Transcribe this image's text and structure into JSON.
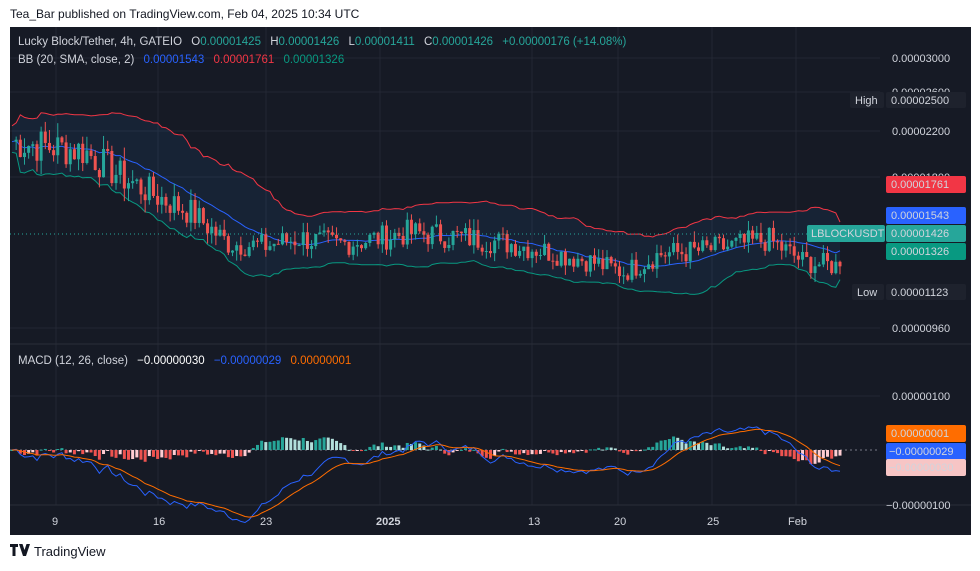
{
  "header": {
    "published": "Tea_Bar published on TradingView.com, Feb 04, 2025 10:34 UTC"
  },
  "footer": {
    "brand": "TradingView",
    "logo": "tv-logo-icon"
  },
  "colors": {
    "background": "#161a25",
    "up": "#26a69a",
    "down": "#ef5350",
    "bb_basis": "#2962ff",
    "bb_upper": "#f23645",
    "bb_lower": "#089981",
    "macd_line": "#2962ff",
    "signal_line": "#ff6d00"
  },
  "legend": {
    "symbol": "Lucky Block/Tether, 4h, GATEIO",
    "o_label": "O",
    "o": "0.00001425",
    "h_label": "H",
    "h": "0.00001426",
    "l_label": "L",
    "l": "0.00001411",
    "c_label": "C",
    "c": "0.00001426",
    "change": "+0.00000176 (+14.08%)",
    "bb_label": "BB (20, SMA, close, 2)",
    "bb_basis": "0.00001543",
    "bb_upper": "0.00001761",
    "bb_lower": "0.00001326",
    "macd_label": "MACD (12, 26, close)",
    "macd_hist": "−0.00000030",
    "macd_line": "−0.00000029",
    "macd_signal": "0.00000001"
  },
  "price_axis": {
    "ticks": [
      "0.00003000",
      "0.00002600",
      "0.00002200",
      "0.00001800",
      "0.00000960"
    ],
    "high_label": "High",
    "high": "0.00002500",
    "low_label": "Low",
    "low": "0.00001123",
    "bb_upper_tag": "0.00001761",
    "bb_basis_tag": "0.00001543",
    "symbol_tag": "LBLOCKUSDT",
    "last_tag": "0.00001426",
    "bb_lower_tag": "0.00001326"
  },
  "macd_axis": {
    "ticks": [
      "0.00000100",
      "−0.00000100"
    ],
    "signal_tag": "0.00000001",
    "macd_tag": "−0.00000029",
    "hist_tag": "−0.00000030"
  },
  "time_axis": {
    "labels": [
      "9",
      "16",
      "23",
      "2025",
      "13",
      "20",
      "25",
      "Feb"
    ]
  },
  "chart_data": {
    "type": "candlestick",
    "title": "Lucky Block/Tether, 4h, GATEIO",
    "x_labels": [
      "9",
      "16",
      "23",
      "2025",
      "13",
      "20",
      "25",
      "Feb"
    ],
    "approx_price_path": [
      {
        "x": "Dec 4",
        "close": 2.37e-05
      },
      {
        "x": "Dec 6",
        "close": 2.33e-05
      },
      {
        "x": "Dec 9",
        "close": 2.3e-05
      },
      {
        "x": "Dec 12",
        "close": 2.11e-05
      },
      {
        "x": "Dec 16",
        "close": 1.96e-05
      },
      {
        "x": "Dec 18",
        "close": 1.83e-05
      },
      {
        "x": "Dec 20",
        "close": 1.6e-05
      },
      {
        "x": "Dec 23",
        "close": 1.58e-05
      },
      {
        "x": "Dec 25",
        "close": 1.64e-05
      },
      {
        "x": "Dec 28",
        "close": 1.59e-05
      },
      {
        "x": "Dec 31",
        "close": 1.63e-05
      },
      {
        "x": "Jan 3",
        "close": 1.68e-05
      },
      {
        "x": "Jan 6",
        "close": 1.66e-05
      },
      {
        "x": "Jan 9",
        "close": 1.63e-05
      },
      {
        "x": "Jan 13",
        "close": 1.59e-05
      },
      {
        "x": "Jan 16",
        "close": 1.53e-05
      },
      {
        "x": "Jan 20",
        "close": 1.47e-05
      },
      {
        "x": "Jan 22",
        "close": 1.38e-05
      },
      {
        "x": "Jan 24",
        "close": 1.52e-05
      },
      {
        "x": "Jan 26",
        "close": 1.54e-05
      },
      {
        "x": "Jan 29",
        "close": 1.58e-05
      },
      {
        "x": "Feb 1",
        "close": 1.63e-05
      },
      {
        "x": "Feb 3",
        "close": 1.46e-05
      },
      {
        "x": "Feb 4",
        "close": 1.426e-05
      }
    ],
    "bollinger": {
      "period": 20,
      "type": "SMA",
      "stddev": 2,
      "last_upper": 1.761e-05,
      "last_basis": 1.543e-05,
      "last_lower": 1.326e-05
    },
    "high": 2.5e-05,
    "low": 1.123e-05,
    "last": 1.426e-05,
    "macd": {
      "fast": 12,
      "slow": 26,
      "source": "close",
      "last_histogram": -3e-07,
      "last_macd": -2.9e-07,
      "last_signal": 1e-08
    }
  }
}
